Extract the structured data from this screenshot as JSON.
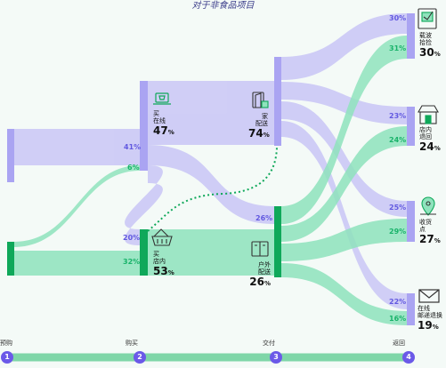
{
  "title": "对于非食品项目",
  "stages": [
    {
      "num": "1",
      "label": "预购"
    },
    {
      "num": "2",
      "label": "购买"
    },
    {
      "num": "3",
      "label": "交付"
    },
    {
      "num": "4",
      "label": "返回"
    }
  ],
  "nodes": {
    "buy_online": {
      "line1": "买",
      "line2": "在线",
      "value": "47",
      "unit": "%",
      "icon": "laptop-cart-icon"
    },
    "buy_instore": {
      "line1": "买",
      "line2": "店内",
      "value": "53",
      "unit": "%",
      "icon": "basket-icon"
    },
    "deliver_home": {
      "line1": "家",
      "line2": "配送",
      "value": "74",
      "unit": "%",
      "icon": "door-icon"
    },
    "deliver_outdoor": {
      "line1": "户外",
      "line2": "配送",
      "value": "26",
      "unit": "%",
      "icon": "locker-icon"
    },
    "ret_kiosk": {
      "line1": "载波",
      "line2": "拾捡",
      "value": "30",
      "unit": "%",
      "icon": "parcel-kiosk-icon"
    },
    "ret_store": {
      "line1": "店内",
      "line2": "退回",
      "value": "24",
      "unit": "%",
      "icon": "storefront-icon"
    },
    "ret_collect": {
      "line1": "收货",
      "line2": "点",
      "value": "27",
      "unit": "%",
      "icon": "location-pin-icon"
    },
    "ret_mail": {
      "line1": "在线",
      "line2": "邮递退换",
      "value": "19",
      "unit": "%",
      "icon": "envelope-icon"
    }
  },
  "flow_labels": {
    "s1_online": "41%",
    "s1_instore": "6%",
    "s2_from_online": "20%",
    "s2_from_instore": "32%",
    "outdoor_from_online": "26%",
    "ret_kiosk_p": "30%",
    "ret_kiosk_g": "31%",
    "ret_store_p": "23%",
    "ret_store_g": "24%",
    "ret_collect_p": "25%",
    "ret_collect_g": "29%",
    "ret_mail_p": "22%",
    "ret_mail_g": "16%"
  },
  "colors": {
    "purple": "#c9c6f6",
    "purple_node": "#aaa4f2",
    "green": "#8fe3bd",
    "green_node": "#0fa85a",
    "bubble": "#6b59e8",
    "timeline": "#7fd6a8"
  }
}
